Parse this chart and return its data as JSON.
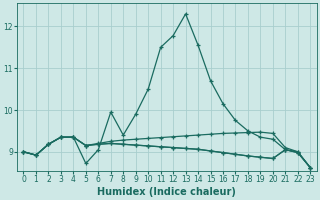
{
  "xlabel": "Humidex (Indice chaleur)",
  "bg_color": "#cee8e6",
  "grid_color": "#a8cece",
  "line_color": "#1a6b60",
  "xlim": [
    -0.5,
    23.5
  ],
  "ylim": [
    8.55,
    12.55
  ],
  "xticks": [
    0,
    1,
    2,
    3,
    4,
    5,
    6,
    7,
    8,
    9,
    10,
    11,
    12,
    13,
    14,
    15,
    16,
    17,
    18,
    19,
    20,
    21,
    22,
    23
  ],
  "yticks": [
    9,
    10,
    11,
    12
  ],
  "series": [
    [
      9.0,
      8.92,
      9.18,
      9.35,
      9.35,
      8.72,
      9.05,
      9.95,
      9.4,
      9.9,
      10.5,
      11.5,
      11.78,
      12.3,
      11.55,
      10.7,
      10.15,
      9.75,
      9.5,
      9.35,
      9.3,
      9.05,
      9.0,
      8.62
    ],
    [
      9.0,
      8.92,
      9.18,
      9.35,
      9.35,
      9.15,
      9.2,
      9.25,
      9.28,
      9.3,
      9.32,
      9.34,
      9.36,
      9.38,
      9.4,
      9.42,
      9.44,
      9.45,
      9.46,
      9.47,
      9.44,
      9.1,
      9.0,
      8.62
    ],
    [
      9.0,
      8.92,
      9.18,
      9.35,
      9.35,
      9.15,
      9.18,
      9.2,
      9.18,
      9.16,
      9.14,
      9.12,
      9.1,
      9.08,
      9.06,
      9.02,
      8.98,
      8.94,
      8.9,
      8.87,
      8.84,
      9.05,
      8.98,
      8.62
    ],
    [
      9.0,
      8.92,
      9.18,
      9.35,
      9.35,
      9.15,
      9.18,
      9.2,
      9.18,
      9.16,
      9.14,
      9.12,
      9.1,
      9.08,
      9.06,
      9.02,
      8.98,
      8.94,
      8.9,
      8.87,
      8.84,
      9.05,
      8.98,
      8.62
    ]
  ],
  "marker": "+",
  "xlabel_fontsize": 7,
  "tick_fontsize": 5.5,
  "linewidth": 0.9,
  "markersize": 3.0
}
